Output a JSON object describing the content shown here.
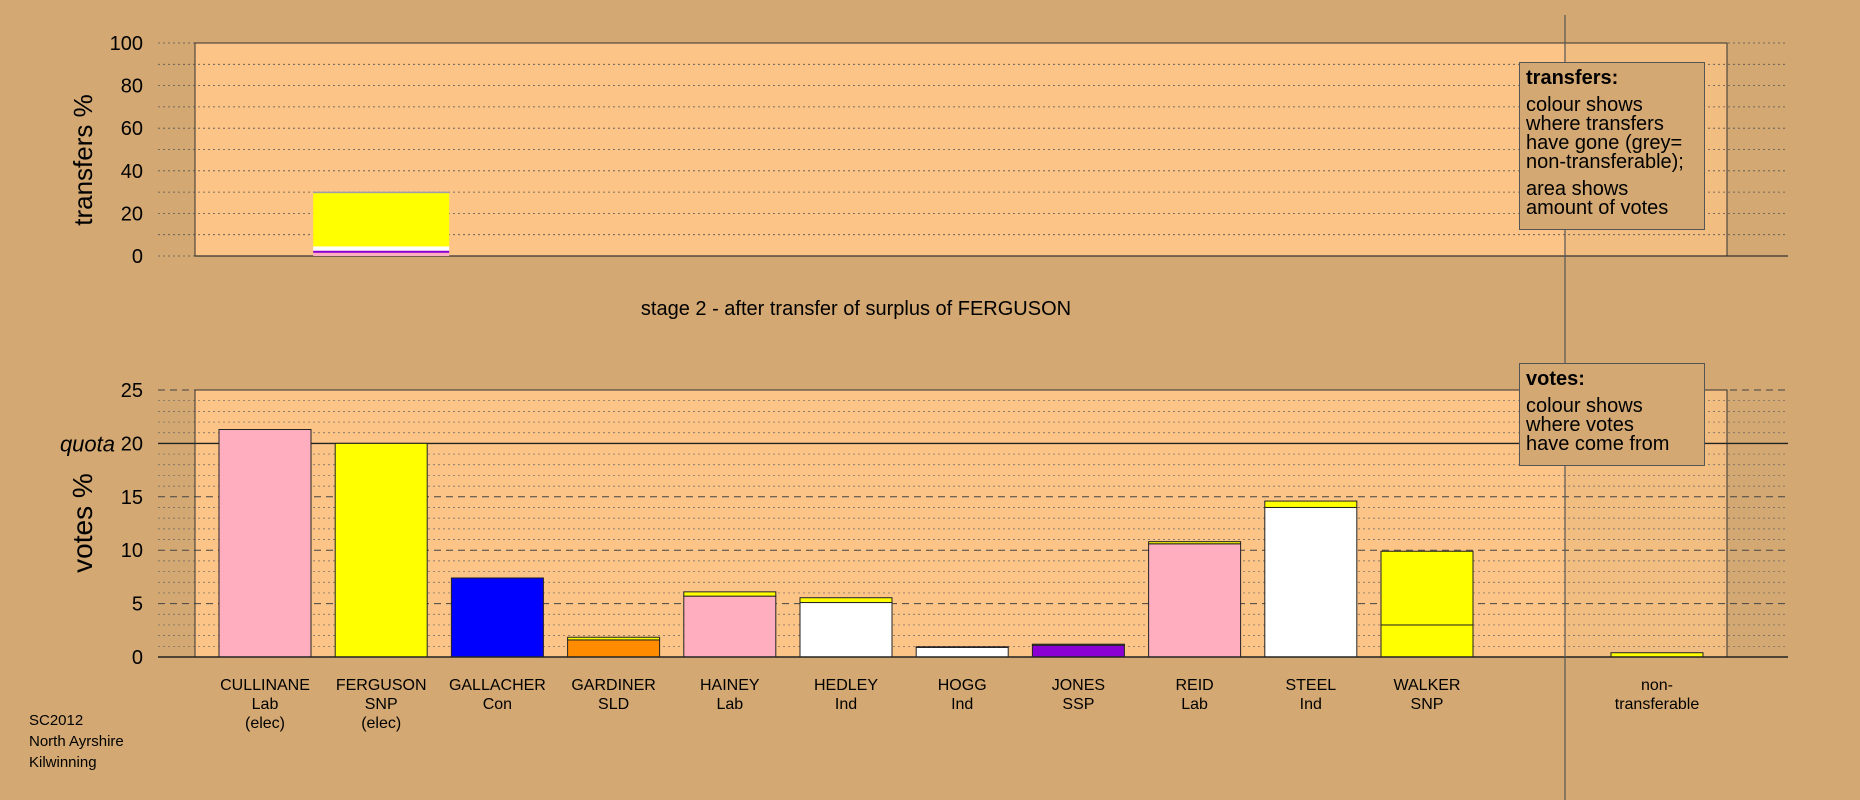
{
  "chart_data": [
    {
      "type": "bar",
      "title": "",
      "ylabel": "transfers %",
      "ylim": [
        0,
        100
      ],
      "yticks": [
        0,
        20,
        40,
        60,
        80,
        100
      ],
      "transfer_from": "FERGUSON",
      "segments": [
        {
          "source": "pink",
          "value": 1.5
        },
        {
          "source": "purple",
          "value": 1.0
        },
        {
          "source": "white",
          "value": 2.0
        },
        {
          "source": "yellow",
          "value": 25.0
        },
        {
          "source": "grey",
          "value": 0.7
        }
      ]
    },
    {
      "type": "bar",
      "title": "stage 2 - after transfer of surplus of FERGUSON",
      "ylabel": "votes %",
      "ylim": [
        0,
        25
      ],
      "yticks": [
        0,
        5,
        10,
        15,
        20,
        25
      ],
      "quota": 20,
      "quota_label": "quota",
      "categories": [
        {
          "name": "CULLINANE",
          "party": "Lab",
          "status": "(elec)"
        },
        {
          "name": "FERGUSON",
          "party": "SNP",
          "status": "(elec)"
        },
        {
          "name": "GALLACHER",
          "party": "Con",
          "status": ""
        },
        {
          "name": "GARDINER",
          "party": "SLD",
          "status": ""
        },
        {
          "name": "HAINEY",
          "party": "Lab",
          "status": ""
        },
        {
          "name": "HEDLEY",
          "party": "Ind",
          "status": ""
        },
        {
          "name": "HOGG",
          "party": "Ind",
          "status": ""
        },
        {
          "name": "JONES",
          "party": "SSP",
          "status": ""
        },
        {
          "name": "REID",
          "party": "Lab",
          "status": ""
        },
        {
          "name": "STEEL",
          "party": "Ind",
          "status": ""
        },
        {
          "name": "WALKER",
          "party": "SNP",
          "status": ""
        }
      ],
      "bars": [
        {
          "segments": [
            {
              "color": "pink",
              "value": 21.3
            }
          ]
        },
        {
          "segments": [
            {
              "color": "yellow",
              "value": 20.0
            }
          ]
        },
        {
          "segments": [
            {
              "color": "blue",
              "value": 7.4
            }
          ]
        },
        {
          "segments": [
            {
              "color": "orange",
              "value": 1.6
            },
            {
              "color": "yellow",
              "value": 0.25
            }
          ]
        },
        {
          "segments": [
            {
              "color": "pink",
              "value": 5.7
            },
            {
              "color": "yellow",
              "value": 0.4
            }
          ]
        },
        {
          "segments": [
            {
              "color": "white",
              "value": 5.1
            },
            {
              "color": "yellow",
              "value": 0.45
            }
          ]
        },
        {
          "segments": [
            {
              "color": "white",
              "value": 0.9
            },
            {
              "color": "yellow",
              "value": 0.06
            }
          ]
        },
        {
          "segments": [
            {
              "color": "purple",
              "value": 1.1
            },
            {
              "color": "yellow",
              "value": 0.1
            }
          ]
        },
        {
          "segments": [
            {
              "color": "pink",
              "value": 10.6
            },
            {
              "color": "yellow",
              "value": 0.2
            }
          ]
        },
        {
          "segments": [
            {
              "color": "white",
              "value": 14.0
            },
            {
              "color": "yellow",
              "value": 0.6
            }
          ]
        },
        {
          "segments": [
            {
              "color": "yellow",
              "value": 3.0
            },
            {
              "color": "yellow",
              "value": 6.9
            }
          ]
        }
      ],
      "nontransferable": {
        "label_lines": [
          "non-",
          "transferable"
        ],
        "segments": [
          {
            "color": "yellow",
            "value": 0.4
          }
        ]
      }
    }
  ],
  "colors": {
    "background": "#d3a872",
    "plot_background": "#fcc587",
    "pink": "#ffaec0",
    "yellow": "#ffff00",
    "blue": "#0000ff",
    "orange": "#ff8c00",
    "white": "#ffffff",
    "purple": "#8b00d2",
    "grey": "#a0a0a0"
  },
  "legend_transfers": {
    "title": "transfers:",
    "lines1": [
      "colour shows",
      "where transfers",
      "have gone (grey=",
      "non-transferable);"
    ],
    "lines2": [
      "area shows",
      "amount of votes"
    ]
  },
  "legend_votes": {
    "title": "votes:",
    "lines1": [
      "colour shows",
      "where votes",
      "have come from"
    ]
  },
  "footer": [
    "SC2012",
    "North Ayrshire",
    "Kilwinning"
  ]
}
